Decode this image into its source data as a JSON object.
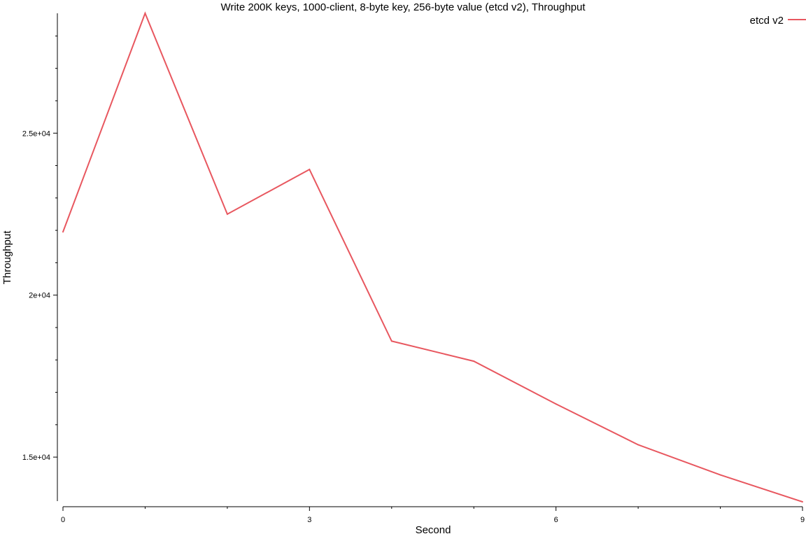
{
  "chart_data": {
    "type": "line",
    "title": "Write 200K keys, 1000-client, 8-byte key, 256-byte value (etcd v2), Throughput",
    "xlabel": "Second",
    "ylabel": "Throughput",
    "xlim": [
      0,
      9
    ],
    "ylim": [
      13620,
      28700
    ],
    "x_ticks_major": [
      0,
      3,
      6,
      9
    ],
    "x_ticks_minor": [
      1,
      2,
      4,
      5,
      7,
      8
    ],
    "x_tick_labels": [
      "0",
      "3",
      "6",
      "9"
    ],
    "y_ticks_major": [
      15000,
      20000,
      25000
    ],
    "y_ticks_minor": [
      16000,
      17000,
      18000,
      19000,
      21000,
      22000,
      23000,
      24000,
      26000,
      27000,
      28000
    ],
    "y_tick_labels": [
      "1.5e+04",
      "2e+04",
      "2.5e+04"
    ],
    "grid": false,
    "legend_position": "top-right",
    "series": [
      {
        "name": "etcd v2",
        "color": "#e8575f",
        "x": [
          0,
          1,
          2,
          3,
          4,
          5,
          6,
          7,
          8,
          9
        ],
        "values": [
          21950,
          28700,
          22500,
          23880,
          18580,
          17960,
          16640,
          15380,
          14450,
          13620
        ]
      }
    ]
  }
}
